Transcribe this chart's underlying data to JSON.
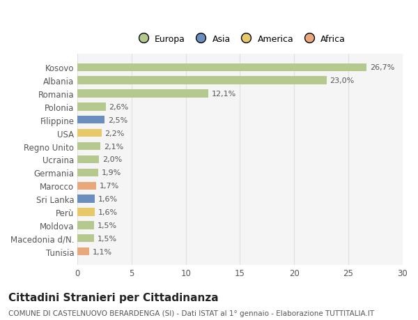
{
  "categories": [
    "Kosovo",
    "Albania",
    "Romania",
    "Polonia",
    "Filippine",
    "USA",
    "Regno Unito",
    "Ucraina",
    "Germania",
    "Marocco",
    "Sri Lanka",
    "Perù",
    "Moldova",
    "Macedonia d/N.",
    "Tunisia"
  ],
  "values": [
    26.7,
    23.0,
    12.1,
    2.6,
    2.5,
    2.2,
    2.1,
    2.0,
    1.9,
    1.7,
    1.6,
    1.6,
    1.5,
    1.5,
    1.1
  ],
  "labels": [
    "26,7%",
    "23,0%",
    "12,1%",
    "2,6%",
    "2,5%",
    "2,2%",
    "2,1%",
    "2,0%",
    "1,9%",
    "1,7%",
    "1,6%",
    "1,6%",
    "1,5%",
    "1,5%",
    "1,1%"
  ],
  "colors": [
    "#b5c98e",
    "#b5c98e",
    "#b5c98e",
    "#b5c98e",
    "#6a8fbf",
    "#e8c96a",
    "#b5c98e",
    "#b5c98e",
    "#b5c98e",
    "#e8a87c",
    "#6a8fbf",
    "#e8c96a",
    "#b5c98e",
    "#b5c98e",
    "#e8a87c"
  ],
  "legend_labels": [
    "Europa",
    "Asia",
    "America",
    "Africa"
  ],
  "legend_colors": [
    "#b5c98e",
    "#6a8fbf",
    "#e8c96a",
    "#e8a87c"
  ],
  "title": "Cittadini Stranieri per Cittadinanza",
  "subtitle": "COMUNE DI CASTELNUOVO BERARDENGA (SI) - Dati ISTAT al 1° gennaio - Elaborazione TUTTITALIA.IT",
  "xlim": [
    0,
    30
  ],
  "xticks": [
    0,
    5,
    10,
    15,
    20,
    25,
    30
  ],
  "bg_color": "#ffffff",
  "grid_color": "#e0e0e0",
  "bar_height": 0.6,
  "title_fontsize": 11,
  "subtitle_fontsize": 7.5,
  "label_fontsize": 8,
  "tick_fontsize": 8.5,
  "legend_fontsize": 9
}
